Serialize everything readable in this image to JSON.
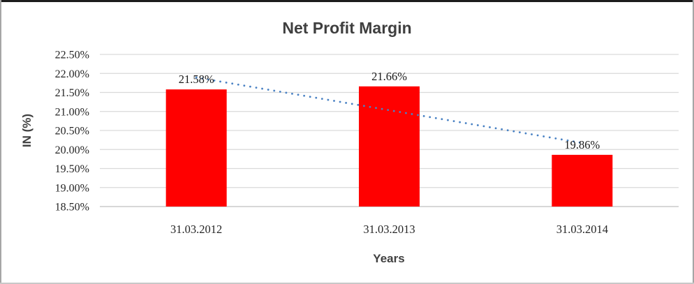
{
  "chart_data": {
    "type": "bar",
    "title": "Net Profit Margin",
    "xlabel": "Years",
    "ylabel": "IN (%)",
    "categories": [
      "31.03.2012",
      "31.03.2013",
      "31.03.2014"
    ],
    "values": [
      21.58,
      21.66,
      19.86
    ],
    "data_labels": [
      "21.58%",
      "21.66%",
      "19.86%"
    ],
    "y_ticks": [
      "22.50%",
      "22.00%",
      "21.50%",
      "21.00%",
      "20.50%",
      "20.00%",
      "19.50%",
      "19.00%",
      "18.50%"
    ],
    "ylim": [
      18.5,
      22.5
    ],
    "grid": true,
    "legend": "none",
    "trendline": {
      "type": "linear",
      "style": "dotted"
    },
    "colors": {
      "bar": "#FF0000",
      "trendline": "#4A82C4",
      "gridline": "#D9D9D9",
      "axis_line": "#BFBFBF"
    }
  }
}
